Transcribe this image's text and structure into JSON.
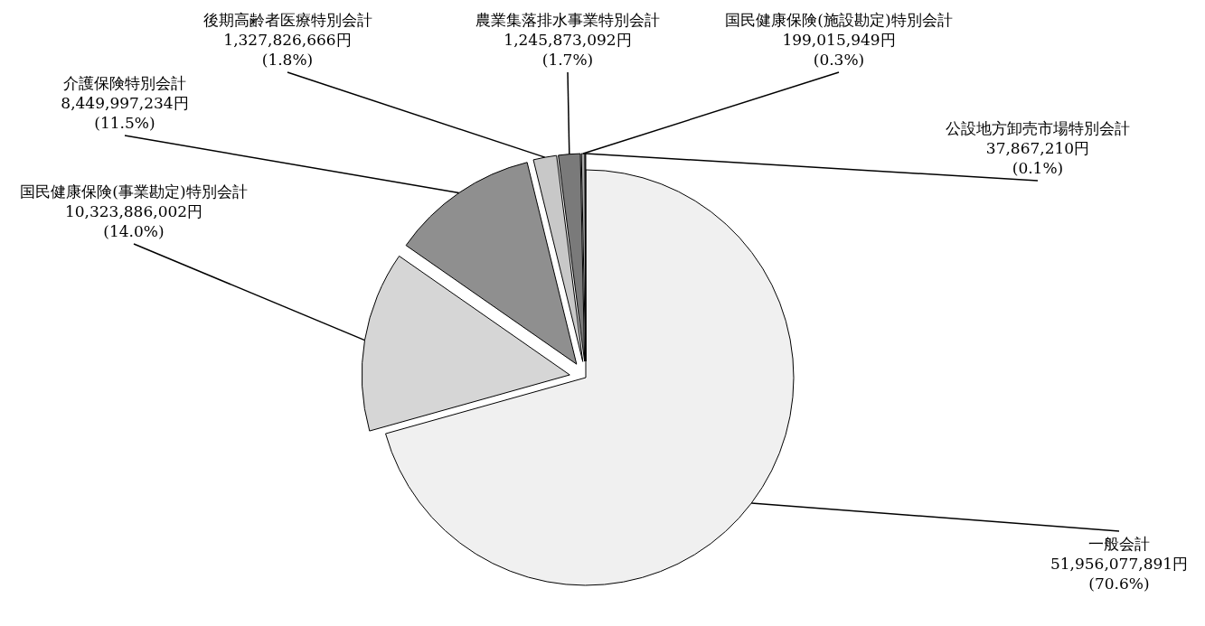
{
  "chart_data": {
    "type": "pie",
    "categories": [
      "一般会計",
      "国民健康保険(事業勘定)特別会計",
      "介護保険特別会計",
      "後期高齢者医療特別会計",
      "農業集落排水事業特別会計",
      "国民健康保険(施設勘定)特別会計",
      "公設地方卸売市場特別会計"
    ],
    "values": [
      51956077891,
      10323886002,
      8449997234,
      1327826666,
      1245873092,
      199015949,
      37867210
    ],
    "value_labels": [
      "51,956,077,891円\n(70.6%)",
      "10,323,886,002円\n(14.0%)",
      "8,449,997,234円\n(11.5%)",
      "1,327,826,666円\n(1.8%)",
      "1,245,873,092円\n(1.7%)",
      "199,015,949円\n(0.3%)",
      "37,867,210円\n(0.1%)"
    ],
    "colors": [
      "#f0f0f0",
      "#d6d6d6",
      "#8f8f8f",
      "#c8c8c8",
      "#7a7a7a",
      "#a8a8a8",
      "#dcdcdc"
    ]
  }
}
